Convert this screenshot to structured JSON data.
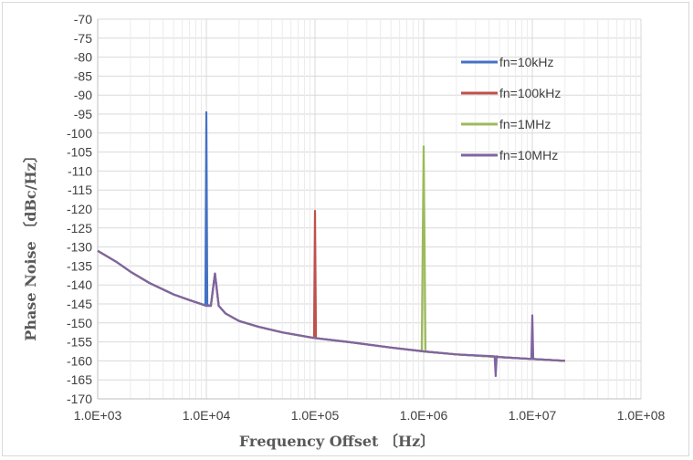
{
  "chart_data": {
    "type": "line",
    "title": "",
    "xlabel": "Frequency Offset 〔Hz〕",
    "ylabel": "Phase Noise 〔dBc/Hz〕",
    "xscale": "log",
    "xlim": [
      1000,
      100000000
    ],
    "ylim": [
      -170,
      -70
    ],
    "x_ticks": [
      1000,
      10000,
      100000,
      1000000,
      10000000,
      100000000
    ],
    "x_tick_labels": [
      "1.0E+03",
      "1.0E+04",
      "1.0E+05",
      "1.0E+06",
      "1.0E+07",
      "1.0E+08"
    ],
    "y_ticks": [
      -70,
      -75,
      -80,
      -85,
      -90,
      -95,
      -100,
      -105,
      -110,
      -115,
      -120,
      -125,
      -130,
      -135,
      -140,
      -145,
      -150,
      -155,
      -160,
      -165,
      -170
    ],
    "y_tick_labels": [
      "-70",
      "-75",
      "-80",
      "-85",
      "-90",
      "-95",
      "-100",
      "-105",
      "-110",
      "-115",
      "-120",
      "-125",
      "-130",
      "-135",
      "-140",
      "-145",
      "-150",
      "-155",
      "-160",
      "-165",
      "-170"
    ],
    "grid": true,
    "legend_position": "top-right",
    "series": [
      {
        "name": "fn=10kHz",
        "color": "#4472c4",
        "x": [
          1000,
          1500,
          2000,
          3000,
          5000,
          7000,
          9000,
          9800,
          10000,
          10200,
          11000,
          12000,
          13000,
          15000,
          20000,
          30000,
          50000,
          100000,
          200000,
          500000,
          1000000,
          2000000,
          5000000,
          10000000,
          20000000
        ],
        "y": [
          -131,
          -134,
          -136.5,
          -139.5,
          -142.5,
          -144,
          -145,
          -145.3,
          -94.5,
          -145.3,
          -145.5,
          -137,
          -145.5,
          -147.5,
          -149.5,
          -151,
          -152.5,
          -154,
          -155,
          -156.5,
          -157.5,
          -158.3,
          -159,
          -159.5,
          -160
        ]
      },
      {
        "name": "fn=100kHz",
        "color": "#c0504d",
        "x": [
          1000,
          1500,
          2000,
          3000,
          5000,
          7000,
          10000,
          11000,
          12000,
          13000,
          15000,
          20000,
          30000,
          50000,
          98000,
          100000,
          102000,
          200000,
          500000,
          1000000,
          2000000,
          5000000,
          10000000,
          20000000
        ],
        "y": [
          -131,
          -134,
          -136.5,
          -139.5,
          -142.5,
          -144,
          -145.5,
          -145.5,
          -137,
          -145.5,
          -147.5,
          -149.5,
          -151,
          -152.5,
          -154,
          -120.5,
          -154,
          -155,
          -156.5,
          -157.5,
          -158.3,
          -159,
          -159.5,
          -160
        ]
      },
      {
        "name": "fn=1MHz",
        "color": "#9bbb59",
        "x": [
          1000,
          1500,
          2000,
          3000,
          5000,
          7000,
          10000,
          11000,
          12000,
          13000,
          15000,
          20000,
          30000,
          50000,
          100000,
          200000,
          500000,
          960000,
          1000000,
          1040000,
          2000000,
          5000000,
          10000000,
          20000000
        ],
        "y": [
          -131,
          -134,
          -136.5,
          -139.5,
          -142.5,
          -144,
          -145.5,
          -145.5,
          -137,
          -145.5,
          -147.5,
          -149.5,
          -151,
          -152.5,
          -154,
          -155,
          -156.5,
          -157.4,
          -103.5,
          -157.6,
          -158.3,
          -159,
          -159.5,
          -160
        ]
      },
      {
        "name": "fn=10MHz",
        "color": "#8064a2",
        "x": [
          1000,
          1500,
          2000,
          3000,
          5000,
          7000,
          10000,
          11000,
          12000,
          13000,
          15000,
          20000,
          30000,
          50000,
          100000,
          200000,
          500000,
          1000000,
          2000000,
          4500000,
          4600000,
          4700000,
          5000000,
          9800000,
          10000000,
          10200000,
          20000000
        ],
        "y": [
          -131,
          -134,
          -136.5,
          -139.5,
          -142.5,
          -144,
          -145.5,
          -145.5,
          -137,
          -145.5,
          -147.5,
          -149.5,
          -151,
          -152.5,
          -154,
          -155,
          -156.5,
          -157.5,
          -158.3,
          -158.8,
          -164,
          -158.8,
          -159,
          -159.5,
          -148,
          -159.5,
          -160
        ]
      }
    ]
  }
}
